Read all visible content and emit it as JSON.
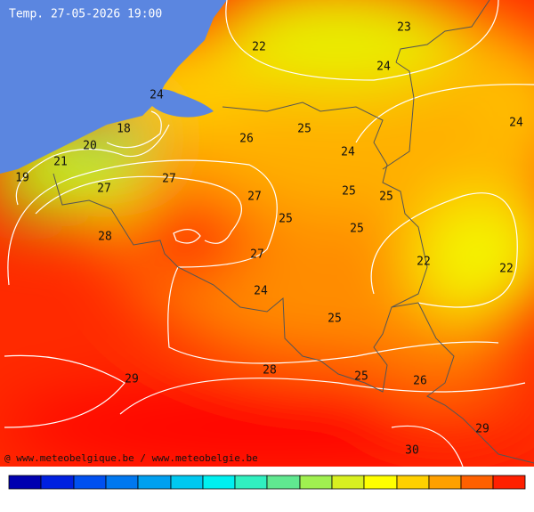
{
  "title": "Temp. 27-05-2026 19:00",
  "labels": [
    22,
    23,
    24,
    24,
    24,
    18,
    25,
    20,
    26,
    24,
    21,
    19,
    27,
    27,
    27,
    25,
    25,
    25,
    25,
    28,
    27,
    22,
    22,
    24,
    25,
    28,
    29,
    25,
    26,
    29,
    30
  ],
  "credit": "@ www.meteobelgique.be / www.meteobelgie.be"
}
